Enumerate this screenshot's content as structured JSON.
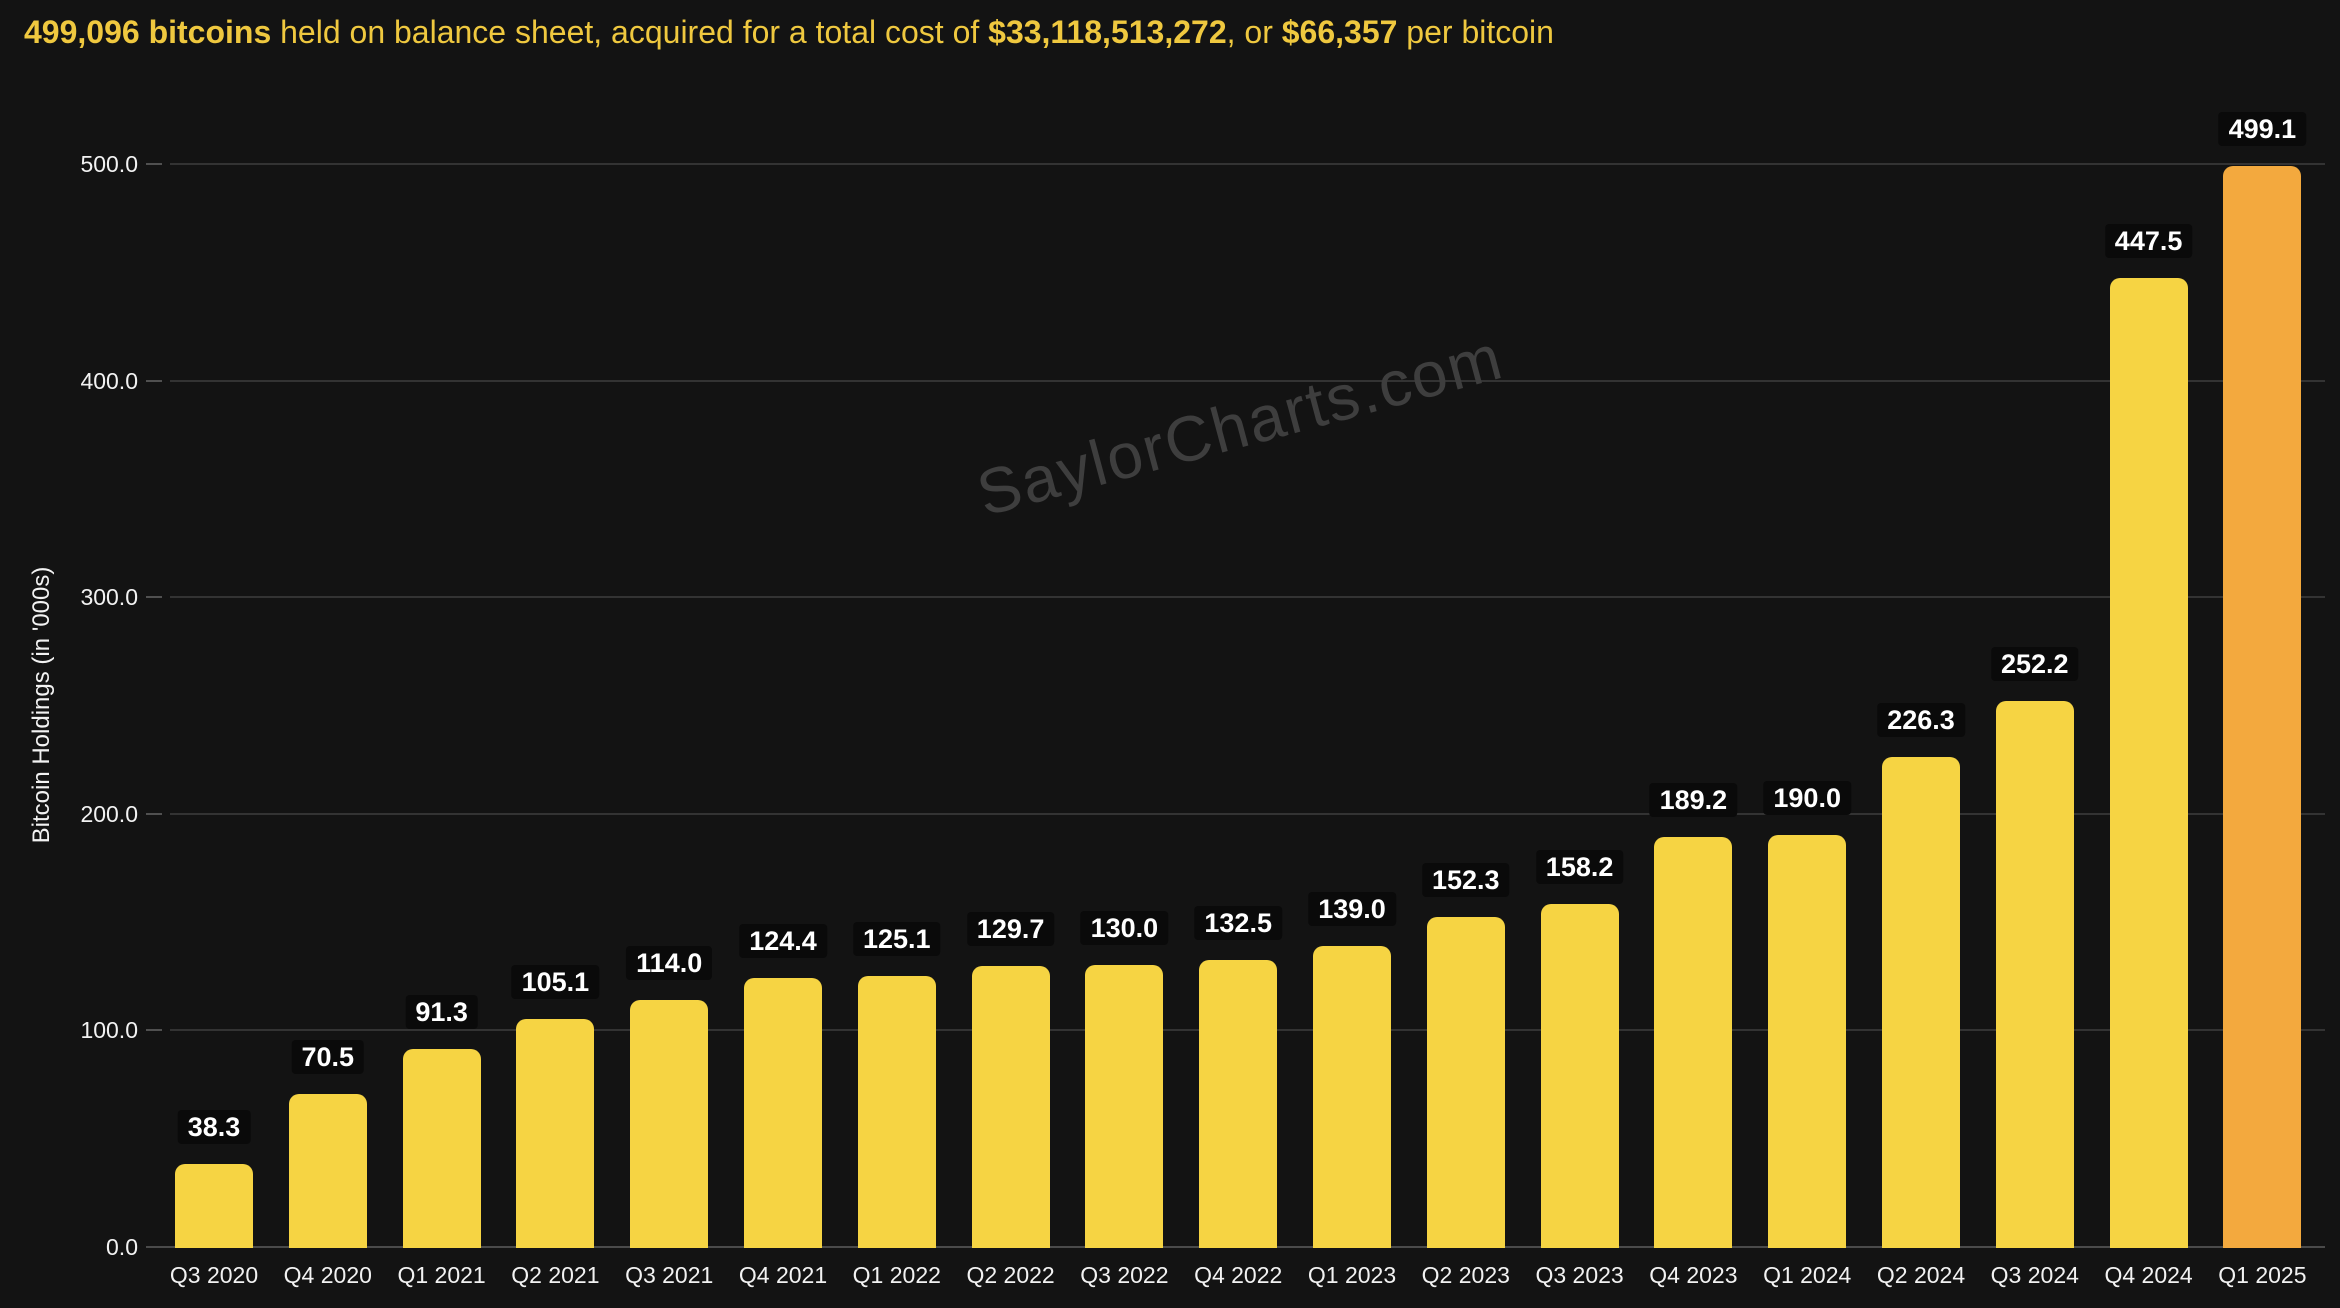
{
  "title": {
    "parts": [
      {
        "text": "499,096 bitcoins",
        "bold": true
      },
      {
        "text": " held on balance sheet, acquired for a total cost of ",
        "bold": false
      },
      {
        "text": "$33,118,513,272",
        "bold": true
      },
      {
        "text": ", or ",
        "bold": false
      },
      {
        "text": "$66,357",
        "bold": true
      },
      {
        "text": " per bitcoin",
        "bold": false
      }
    ],
    "color": "#EFC83F"
  },
  "watermark": "SaylorCharts.com",
  "chart_data": {
    "type": "bar",
    "title": "499,096 bitcoins held on balance sheet, acquired for a total cost of $33,118,513,272, or $66,357 per bitcoin",
    "categories": [
      "Q3 2020",
      "Q4 2020",
      "Q1 2021",
      "Q2 2021",
      "Q3 2021",
      "Q4 2021",
      "Q1 2022",
      "Q2 2022",
      "Q3 2022",
      "Q4 2022",
      "Q1 2023",
      "Q2 2023",
      "Q3 2023",
      "Q4 2023",
      "Q1 2024",
      "Q2 2024",
      "Q3 2024",
      "Q4 2024",
      "Q1 2025"
    ],
    "values": [
      38.3,
      70.5,
      91.3,
      105.1,
      114.0,
      124.4,
      125.1,
      129.7,
      130.0,
      132.5,
      139.0,
      152.3,
      158.2,
      189.2,
      190.0,
      226.3,
      252.2,
      447.5,
      499.1
    ],
    "bar_labels": [
      "38.3",
      "70.5",
      "91.3",
      "105.1",
      "114.0",
      "124.4",
      "125.1",
      "129.7",
      "130.0",
      "132.5",
      "139.0",
      "152.3",
      "158.2",
      "189.2",
      "190.0",
      "226.3",
      "252.2",
      "447.5",
      "499.1"
    ],
    "xlabel": "",
    "ylabel": "Bitcoin Holdings (in '000s)",
    "ylim": [
      0,
      500
    ],
    "yticks": [
      0,
      100,
      200,
      300,
      400,
      500
    ],
    "ytick_labels": [
      "0.0",
      "100.0",
      "200.0",
      "300.0",
      "400.0",
      "500.0"
    ],
    "grid": "horizontal",
    "legend": "none",
    "colors": {
      "bar_default": "#F6D443",
      "bar_final": "#F3A93E",
      "background": "#131313",
      "gridline": "#333333",
      "baseline": "#4A4A4A",
      "badge_background": "#0A0A0A",
      "badge_text": "#FFFFFF",
      "axis_text": "#F2F2F2",
      "title_text": "#EFC83F",
      "watermark_text": "#3E3E3E"
    }
  }
}
